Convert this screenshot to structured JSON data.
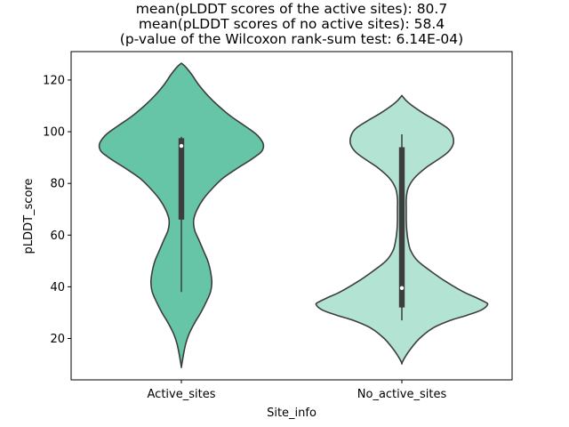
{
  "chart_data": {
    "type": "violin",
    "title_lines": [
      "mean(pLDDT scores of the active sites): 80.7",
      "mean(pLDDT scores of no active sites): 58.4",
      "(p-value of the Wilcoxon rank-sum test: 6.14E-04)"
    ],
    "xlabel": "Site_info",
    "ylabel": "pLDDT_score",
    "ylim": [
      4,
      131
    ],
    "yticks": [
      20,
      40,
      60,
      80,
      100,
      120
    ],
    "categories": [
      "Active_sites",
      "No_active_sites"
    ],
    "grid": false,
    "legend": "none",
    "series": [
      {
        "category": "Active_sites",
        "color": "#66c5a7",
        "min": 38,
        "q1": 66,
        "median": 94.5,
        "q3": 97.5,
        "max": 98,
        "kde_range": [
          9,
          126.5
        ],
        "density_profile": [
          [
            126.5,
            0.0
          ],
          [
            125,
            0.05
          ],
          [
            122,
            0.12
          ],
          [
            118,
            0.2
          ],
          [
            114,
            0.3
          ],
          [
            110,
            0.42
          ],
          [
            106,
            0.56
          ],
          [
            102,
            0.73
          ],
          [
            99,
            0.85
          ],
          [
            96,
            0.92
          ],
          [
            94,
            0.93
          ],
          [
            92,
            0.9
          ],
          [
            89,
            0.78
          ],
          [
            86,
            0.64
          ],
          [
            82,
            0.47
          ],
          [
            78,
            0.35
          ],
          [
            74,
            0.25
          ],
          [
            70,
            0.18
          ],
          [
            66,
            0.14
          ],
          [
            62,
            0.15
          ],
          [
            58,
            0.2
          ],
          [
            54,
            0.25
          ],
          [
            50,
            0.3
          ],
          [
            46,
            0.33
          ],
          [
            42,
            0.345
          ],
          [
            38,
            0.33
          ],
          [
            34,
            0.28
          ],
          [
            30,
            0.22
          ],
          [
            26,
            0.15
          ],
          [
            22,
            0.09
          ],
          [
            18,
            0.05
          ],
          [
            14,
            0.025
          ],
          [
            11,
            0.01
          ],
          [
            9,
            0.0
          ]
        ]
      },
      {
        "category": "No_active_sites",
        "color": "#b2e3d3",
        "min": 27,
        "q1": 32,
        "median": 39.5,
        "q3": 94,
        "max": 99,
        "kde_range": [
          10.5,
          114
        ],
        "density_profile": [
          [
            114,
            0.0
          ],
          [
            112,
            0.05
          ],
          [
            110,
            0.12
          ],
          [
            107,
            0.25
          ],
          [
            104,
            0.4
          ],
          [
            101,
            0.53
          ],
          [
            98,
            0.58
          ],
          [
            95,
            0.58
          ],
          [
            92,
            0.52
          ],
          [
            89,
            0.4
          ],
          [
            86,
            0.27
          ],
          [
            82,
            0.14
          ],
          [
            78,
            0.07
          ],
          [
            74,
            0.05
          ],
          [
            70,
            0.05
          ],
          [
            66,
            0.05
          ],
          [
            62,
            0.055
          ],
          [
            58,
            0.07
          ],
          [
            54,
            0.1
          ],
          [
            50,
            0.18
          ],
          [
            46,
            0.33
          ],
          [
            42,
            0.5
          ],
          [
            38,
            0.7
          ],
          [
            36,
            0.83
          ],
          [
            34,
            0.95
          ],
          [
            33,
            0.97
          ],
          [
            31,
            0.9
          ],
          [
            29,
            0.74
          ],
          [
            27,
            0.55
          ],
          [
            24,
            0.35
          ],
          [
            20,
            0.2
          ],
          [
            16,
            0.1
          ],
          [
            13,
            0.04
          ],
          [
            10.5,
            0.0
          ]
        ]
      }
    ]
  }
}
